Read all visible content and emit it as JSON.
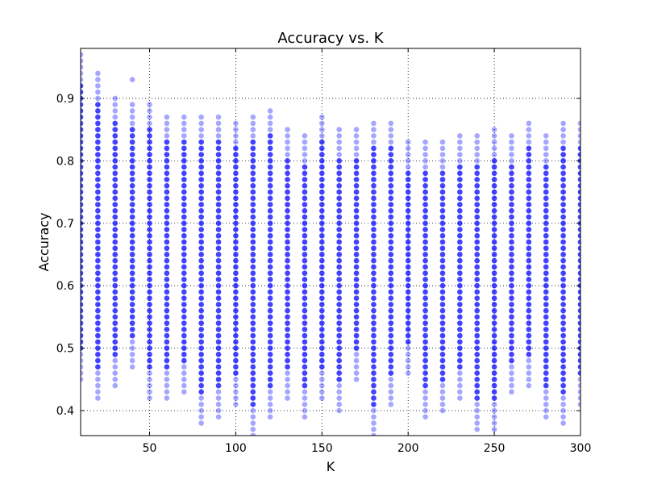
{
  "chart_data": {
    "type": "scatter",
    "title": "Accuracy vs. K",
    "xlabel": "K",
    "ylabel": "Accuracy",
    "xlim": [
      10,
      300
    ],
    "ylim": [
      0.36,
      0.98
    ],
    "xticks": [
      50,
      100,
      150,
      200,
      250,
      300
    ],
    "yticks": [
      0.4,
      0.5,
      0.6,
      0.7,
      0.8,
      0.9
    ],
    "xtick_labels": [
      "50",
      "100",
      "150",
      "200",
      "250",
      "300"
    ],
    "ytick_labels": [
      "0.4",
      "0.5",
      "0.6",
      "0.7",
      "0.8",
      "0.9"
    ],
    "grid": true,
    "marker_color": "#0000ff",
    "marker_alpha": 0.35,
    "columns": [
      {
        "k": 10,
        "low": 0.45,
        "high": 0.97,
        "outliers": []
      },
      {
        "k": 20,
        "low": 0.42,
        "high": 0.94,
        "outliers": []
      },
      {
        "k": 30,
        "low": 0.44,
        "high": 0.9,
        "outliers": []
      },
      {
        "k": 40,
        "low": 0.47,
        "high": 0.89,
        "outliers": [
          0.93
        ]
      },
      {
        "k": 50,
        "low": 0.42,
        "high": 0.89,
        "outliers": []
      },
      {
        "k": 60,
        "low": 0.42,
        "high": 0.87,
        "outliers": []
      },
      {
        "k": 70,
        "low": 0.43,
        "high": 0.87,
        "outliers": []
      },
      {
        "k": 80,
        "low": 0.38,
        "high": 0.87,
        "outliers": []
      },
      {
        "k": 90,
        "low": 0.39,
        "high": 0.87,
        "outliers": []
      },
      {
        "k": 100,
        "low": 0.41,
        "high": 0.86,
        "outliers": []
      },
      {
        "k": 110,
        "low": 0.36,
        "high": 0.87,
        "outliers": []
      },
      {
        "k": 120,
        "low": 0.39,
        "high": 0.88,
        "outliers": []
      },
      {
        "k": 130,
        "low": 0.42,
        "high": 0.85,
        "outliers": []
      },
      {
        "k": 140,
        "low": 0.39,
        "high": 0.84,
        "outliers": []
      },
      {
        "k": 150,
        "low": 0.42,
        "high": 0.87,
        "outliers": []
      },
      {
        "k": 160,
        "low": 0.4,
        "high": 0.85,
        "outliers": []
      },
      {
        "k": 170,
        "low": 0.45,
        "high": 0.85,
        "outliers": []
      },
      {
        "k": 180,
        "low": 0.36,
        "high": 0.86,
        "outliers": []
      },
      {
        "k": 190,
        "low": 0.41,
        "high": 0.86,
        "outliers": []
      },
      {
        "k": 200,
        "low": 0.46,
        "high": 0.83,
        "outliers": []
      },
      {
        "k": 210,
        "low": 0.39,
        "high": 0.83,
        "outliers": []
      },
      {
        "k": 220,
        "low": 0.4,
        "high": 0.83,
        "outliers": []
      },
      {
        "k": 230,
        "low": 0.42,
        "high": 0.84,
        "outliers": []
      },
      {
        "k": 240,
        "low": 0.37,
        "high": 0.84,
        "outliers": []
      },
      {
        "k": 250,
        "low": 0.37,
        "high": 0.85,
        "outliers": []
      },
      {
        "k": 260,
        "low": 0.43,
        "high": 0.84,
        "outliers": []
      },
      {
        "k": 270,
        "low": 0.44,
        "high": 0.86,
        "outliers": []
      },
      {
        "k": 280,
        "low": 0.39,
        "high": 0.84,
        "outliers": []
      },
      {
        "k": 290,
        "low": 0.38,
        "high": 0.86,
        "outliers": []
      },
      {
        "k": 300,
        "low": 0.41,
        "high": 0.86,
        "outliers": []
      }
    ]
  }
}
